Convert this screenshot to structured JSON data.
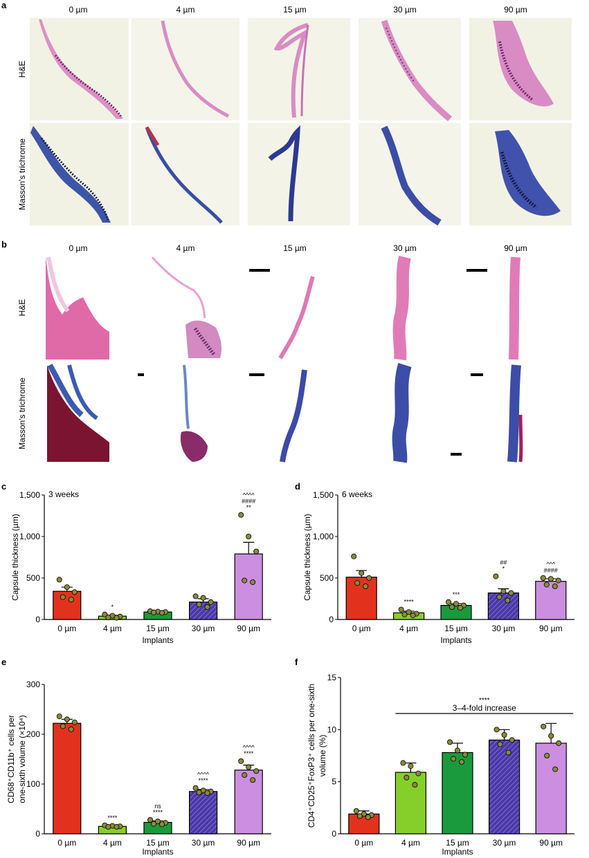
{
  "panel_labels": [
    "a",
    "b",
    "c",
    "d",
    "e",
    "f"
  ],
  "micrographs": {
    "columns": [
      "0 µm",
      "4 µm",
      "15 µm",
      "30 µm",
      "90 µm"
    ],
    "rows": [
      "H&E",
      "Masson's trichrome"
    ],
    "stain_colors": {
      "he": "#d86fb0",
      "he_dark": "#7a3570",
      "masson": "#3b4da6",
      "masson_dark": "#1b2260",
      "muscle": "#7a1430",
      "bg_a": "#f3f2e6"
    }
  },
  "bar_colors": [
    "#e2321e",
    "#86cf2b",
    "#1a9a3c",
    "#4b3aa6",
    "#cc8ee0"
  ],
  "dot_color": "#8a8a3a",
  "chart_data": [
    {
      "id": "c",
      "type": "bar",
      "annotation": "3 weeks",
      "categories": [
        "0 µm",
        "4 µm",
        "15 µm",
        "30 µm",
        "90 µm"
      ],
      "values": [
        340,
        40,
        90,
        210,
        790
      ],
      "errors": [
        50,
        10,
        8,
        40,
        140
      ],
      "points": [
        [
          480,
          390,
          330,
          270,
          240
        ],
        [
          60,
          45,
          35,
          25,
          20
        ],
        [
          100,
          95,
          90,
          85,
          80
        ],
        [
          280,
          260,
          210,
          180,
          150
        ],
        [
          1260,
          1000,
          820,
          470,
          450
        ]
      ],
      "significance": [
        "",
        "*",
        "",
        "",
        "^^^^\n####\n**"
      ],
      "xlabel": "Implants",
      "ylabel": "Capsule thickness (µm)",
      "ylim": [
        0,
        1500
      ],
      "yticks": [
        "0",
        "500",
        "1,000",
        "1,500"
      ],
      "ytick_values": [
        0,
        500,
        1000,
        1500
      ]
    },
    {
      "id": "d",
      "type": "bar",
      "annotation": "6 weeks",
      "categories": [
        "0 µm",
        "4 µm",
        "15 µm",
        "30 µm",
        "90 µm"
      ],
      "values": [
        510,
        80,
        170,
        320,
        460
      ],
      "errors": [
        80,
        20,
        20,
        50,
        30
      ],
      "points": [
        [
          760,
          560,
          500,
          440,
          400
        ],
        [
          120,
          90,
          70,
          60,
          50
        ],
        [
          210,
          190,
          170,
          150,
          140
        ],
        [
          520,
          340,
          320,
          270,
          230
        ],
        [
          500,
          490,
          470,
          420,
          400
        ]
      ],
      "significance": [
        "",
        "****",
        "***",
        "##\n*",
        "^^^\n####"
      ],
      "xlabel": "Implants",
      "ylabel": "Capsule thickness (µm)",
      "ylim": [
        0,
        1500
      ],
      "yticks": [
        "0",
        "500",
        "1,000",
        "1,500"
      ],
      "ytick_values": [
        0,
        500,
        1000,
        1500
      ]
    },
    {
      "id": "e",
      "type": "bar",
      "categories": [
        "0 µm",
        "4 µm",
        "15 µm",
        "30 µm",
        "90 µm"
      ],
      "values": [
        222,
        15,
        23,
        85,
        128
      ],
      "errors": [
        8,
        2,
        3,
        4,
        10
      ],
      "points": [
        [
          236,
          230,
          224,
          216,
          210
        ],
        [
          17,
          16,
          15,
          14,
          14
        ],
        [
          28,
          25,
          22,
          20,
          19
        ],
        [
          92,
          87,
          85,
          83,
          82
        ],
        [
          146,
          134,
          126,
          118,
          108
        ]
      ],
      "significance": [
        "",
        "****",
        "ns\n****",
        "^^^^\n****",
        "^^^^\n****"
      ],
      "xlabel": "Implants",
      "ylabel": "CD68⁺CD11b⁺ cells per one-sixth volume (×10⁴)",
      "ylabel_lines": [
        "CD68⁺CD11b⁺ cells per",
        "one-sixth volume (×10⁴)"
      ],
      "ylim": [
        0,
        300
      ],
      "yticks": [
        "0",
        "100",
        "200",
        "300"
      ],
      "ytick_values": [
        0,
        100,
        200,
        300
      ]
    },
    {
      "id": "f",
      "type": "bar",
      "categories": [
        "0 µm",
        "4 µm",
        "15 µm",
        "30 µm",
        "90 µm"
      ],
      "values": [
        1.9,
        5.9,
        7.8,
        9.0,
        8.7
      ],
      "errors": [
        0.3,
        0.9,
        0.9,
        1.0,
        1.9
      ],
      "points": [
        [
          2.2,
          1.9,
          1.8,
          1.7,
          1.6
        ],
        [
          6.8,
          6.5,
          5.8,
          5.4,
          4.7
        ],
        [
          8.8,
          8.0,
          7.6,
          7.2,
          6.9
        ],
        [
          10.0,
          9.5,
          9.0,
          8.6,
          7.8
        ],
        [
          10.3,
          9.4,
          8.7,
          7.5,
          6.2
        ]
      ],
      "significance": [
        "",
        "",
        "",
        "",
        ""
      ],
      "bracket": {
        "from": 1,
        "to": 4,
        "stars": "****",
        "text": "3–4-fold increase"
      },
      "xlabel": "Implants",
      "ylabel": "CD4⁺CD25⁺FoxP3⁺ cells per one-sixth volume (%)",
      "ylabel_lines": [
        "CD4⁺CD25⁺FoxP3⁺ cells per one-sixth",
        "volume (%)"
      ],
      "ylim": [
        0,
        15
      ],
      "yticks": [
        "0",
        "5",
        "10",
        "15"
      ],
      "ytick_values": [
        0,
        5,
        10,
        15
      ]
    }
  ]
}
